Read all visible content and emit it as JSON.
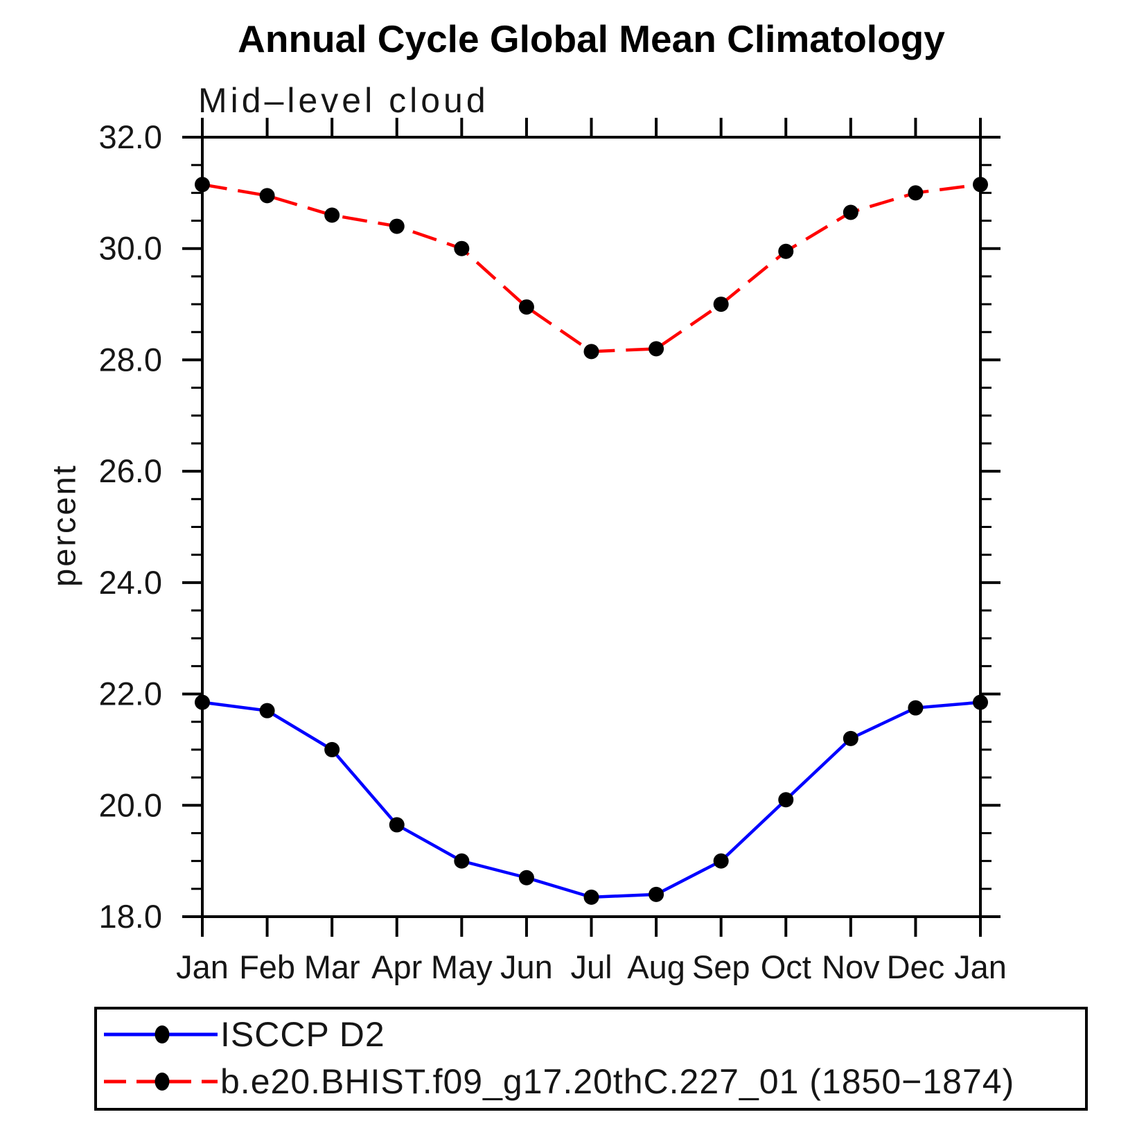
{
  "header": {
    "title": "Annual Cycle Global Mean Climatology"
  },
  "chart_data": {
    "type": "line",
    "title": "Annual Cycle Global Mean Climatology",
    "subtitle": "Mid–level cloud",
    "xlabel": "",
    "ylabel": "percent",
    "categories": [
      "Jan",
      "Feb",
      "Mar",
      "Apr",
      "May",
      "Jun",
      "Jul",
      "Aug",
      "Sep",
      "Oct",
      "Nov",
      "Dec",
      "Jan"
    ],
    "series": [
      {
        "name": "ISCCP D2",
        "line_style": "solid",
        "color": "#0000ff",
        "marker": "filled-circle",
        "marker_color": "#000000",
        "values": [
          21.85,
          21.7,
          21.0,
          19.65,
          19.0,
          18.7,
          18.35,
          18.4,
          19.0,
          20.1,
          21.2,
          21.75,
          21.85
        ]
      },
      {
        "name": "b.e20.BHIST.f09_g17.20thC.227_01 (1850−1874)",
        "line_style": "dashed",
        "color": "#ff0000",
        "marker": "filled-circle",
        "marker_color": "#000000",
        "values": [
          31.15,
          30.95,
          30.6,
          30.4,
          30.0,
          28.95,
          28.15,
          28.2,
          29.0,
          29.95,
          30.65,
          31.0,
          31.15
        ]
      }
    ],
    "ylim": [
      18.0,
      32.0
    ],
    "yticks": {
      "major": [
        18,
        20,
        22,
        24,
        26,
        28,
        30,
        32
      ],
      "labels": [
        "18.0",
        "20.0",
        "22.0",
        "24.0",
        "26.0",
        "28.0",
        "30.0",
        "32.0"
      ],
      "minor_step": 0.5
    },
    "grid": false,
    "axis_color": "#000000",
    "legend_position": "bottom-box"
  },
  "legend": {
    "entries": [
      {
        "label": "ISCCP D2"
      },
      {
        "label": "b.e20.BHIST.f09_g17.20thC.227_01 (1850−1874)"
      }
    ]
  }
}
